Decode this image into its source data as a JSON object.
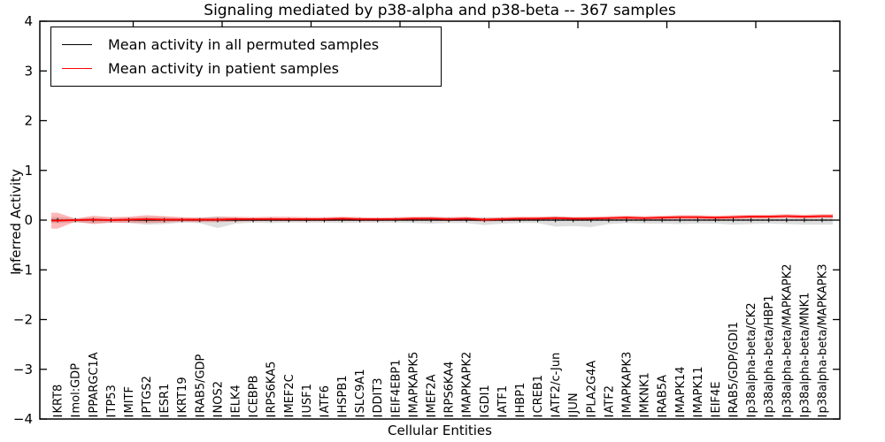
{
  "chart_data": {
    "type": "line",
    "title": "Signaling mediated by p38-alpha and p38-beta -- 367 samples",
    "xlabel": "Cellular Entities",
    "ylabel": "Inferred Activity",
    "ylim": [
      -4,
      4
    ],
    "yticks": [
      4,
      3,
      2,
      1,
      0,
      -1,
      -2,
      -3,
      -4
    ],
    "ytick_labels": [
      "4",
      "3",
      "2",
      "1",
      "0",
      "−1",
      "−2",
      "−3",
      "−4"
    ],
    "grid": false,
    "legend_position": "upper left",
    "zero_line": {
      "style": "dotted",
      "color": "#000000",
      "y": 0
    },
    "categories": [
      "KRT8",
      "mol:GDP",
      "PPARGC1A",
      "TP53",
      "MITF",
      "PTGS2",
      "ESR1",
      "KRT19",
      "RAB5/GDP",
      "NOS2",
      "ELK4",
      "CEBPB",
      "RPS6KA5",
      "MEF2C",
      "USF1",
      "ATF6",
      "HSPB1",
      "SLC9A1",
      "DDIT3",
      "EIF4EBP1",
      "MAPKAPK5",
      "MEF2A",
      "RPS6KA4",
      "MAPKAPK2",
      "GDI1",
      "ATF1",
      "HBP1",
      "CREB1",
      "ATF2/c-Jun",
      "JUN",
      "PLA2G4A",
      "ATF2",
      "MAPKAPK3",
      "MKNK1",
      "RAB5A",
      "MAPK14",
      "MAPK11",
      "EIF4E",
      "RAB5/GDP/GDI1",
      "p38alpha-beta/CK2",
      "p38alpha-beta/HBP1",
      "p38alpha-beta/MAPKAPK2",
      "p38alpha-beta/MNK1",
      "p38alpha-beta/MAPKAPK3"
    ],
    "series": [
      {
        "name": "Mean activity in all permuted samples",
        "color": "#000000",
        "line_width": 1.2,
        "marker": "plus",
        "values": [
          0,
          0,
          0,
          0,
          0,
          0,
          0,
          0,
          0,
          0,
          0,
          0,
          0,
          0,
          0,
          0,
          0,
          0,
          0,
          0,
          0,
          0,
          0,
          0,
          0,
          0,
          0,
          0,
          0,
          0,
          0,
          0,
          0,
          0,
          0,
          0,
          0,
          0,
          0,
          0,
          0,
          0,
          0,
          0
        ],
        "band": {
          "fill": "rgba(0,0,0,0.13)",
          "upper": [
            0.06,
            0.04,
            0.05,
            0.04,
            0.05,
            0.07,
            0.06,
            0.04,
            0.05,
            0.08,
            0.05,
            0.04,
            0.05,
            0.04,
            0.04,
            0.04,
            0.05,
            0.04,
            0.04,
            0.04,
            0.05,
            0.06,
            0.05,
            0.05,
            0.06,
            0.05,
            0.04,
            0.05,
            0.07,
            0.06,
            0.05,
            0.05,
            0.04,
            0.05,
            0.05,
            0.06,
            0.05,
            0.05,
            0.06,
            0.06,
            0.05,
            0.06,
            0.07,
            0.07
          ],
          "lower": [
            -0.06,
            -0.05,
            -0.06,
            -0.05,
            -0.06,
            -0.09,
            -0.08,
            -0.05,
            -0.06,
            -0.16,
            -0.07,
            -0.05,
            -0.06,
            -0.05,
            -0.05,
            -0.05,
            -0.06,
            -0.05,
            -0.05,
            -0.05,
            -0.06,
            -0.07,
            -0.06,
            -0.06,
            -0.1,
            -0.07,
            -0.06,
            -0.06,
            -0.13,
            -0.12,
            -0.14,
            -0.08,
            -0.06,
            -0.07,
            -0.07,
            -0.08,
            -0.07,
            -0.07,
            -0.09,
            -0.08,
            -0.07,
            -0.08,
            -0.09,
            -0.09
          ]
        }
      },
      {
        "name": "Mean activity in patient samples",
        "color": "#ff0000",
        "line_width": 1.8,
        "marker": "none",
        "values": [
          -0.01,
          0.0,
          0.01,
          0.0,
          0.01,
          0.02,
          0.01,
          0.01,
          0.01,
          0.01,
          0.02,
          0.02,
          0.02,
          0.02,
          0.02,
          0.02,
          0.03,
          0.02,
          0.02,
          0.02,
          0.03,
          0.03,
          0.02,
          0.03,
          0.01,
          0.02,
          0.03,
          0.03,
          0.04,
          0.03,
          0.03,
          0.04,
          0.05,
          0.04,
          0.05,
          0.06,
          0.06,
          0.05,
          0.06,
          0.07,
          0.07,
          0.08,
          0.07,
          0.08
        ],
        "band": {
          "fill": "rgba(255,0,0,0.28)",
          "upper": [
            0.15,
            0.03,
            0.09,
            0.06,
            0.07,
            0.1,
            0.08,
            0.06,
            0.05,
            0.06,
            0.07,
            0.06,
            0.07,
            0.07,
            0.06,
            0.06,
            0.07,
            0.06,
            0.05,
            0.06,
            0.07,
            0.07,
            0.06,
            0.07,
            0.04,
            0.06,
            0.07,
            0.07,
            0.08,
            0.06,
            0.07,
            0.08,
            0.09,
            0.08,
            0.09,
            0.1,
            0.1,
            0.09,
            0.1,
            0.11,
            0.11,
            0.12,
            0.11,
            0.12
          ],
          "lower": [
            -0.17,
            -0.03,
            -0.08,
            -0.05,
            -0.05,
            -0.06,
            -0.05,
            -0.03,
            -0.04,
            -0.04,
            -0.03,
            -0.02,
            -0.02,
            -0.02,
            -0.02,
            -0.02,
            -0.01,
            -0.02,
            -0.02,
            -0.01,
            -0.01,
            -0.01,
            -0.02,
            -0.01,
            -0.03,
            -0.02,
            -0.01,
            -0.01,
            0.0,
            -0.01,
            -0.01,
            0.0,
            0.01,
            0.0,
            0.01,
            0.02,
            0.02,
            0.01,
            0.02,
            0.03,
            0.03,
            0.04,
            0.03,
            0.04
          ]
        }
      }
    ]
  }
}
